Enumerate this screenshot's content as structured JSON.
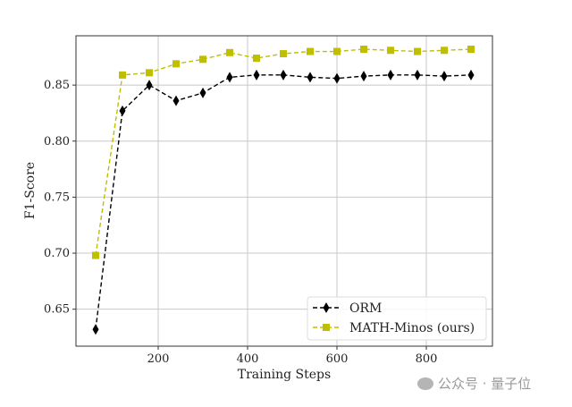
{
  "chart_data": {
    "type": "line",
    "title": "",
    "xlabel": "Training Steps",
    "ylabel": "F1-Score",
    "xlim": [
      16,
      948
    ],
    "ylim": [
      0.617,
      0.894
    ],
    "xticks": [
      200,
      400,
      600,
      800
    ],
    "xtick_labels": [
      "200",
      "400",
      "600",
      "800"
    ],
    "yticks": [
      0.65,
      0.7,
      0.75,
      0.8,
      0.85
    ],
    "ytick_labels": [
      "0.65",
      "0.70",
      "0.75",
      "0.80",
      "0.85"
    ],
    "grid": true,
    "legend_placement": "lower-right",
    "x": [
      60,
      120,
      180,
      240,
      300,
      360,
      420,
      480,
      540,
      600,
      660,
      720,
      780,
      840,
      900
    ],
    "series": [
      {
        "name": "ORM",
        "color": "#000000",
        "marker": "diamond",
        "linestyle": "dashed",
        "values": [
          0.632,
          0.827,
          0.85,
          0.836,
          0.843,
          0.857,
          0.859,
          0.859,
          0.857,
          0.856,
          0.858,
          0.859,
          0.859,
          0.858,
          0.859
        ]
      },
      {
        "name": "MATH-Minos (ours)",
        "color": "#bfbf00",
        "marker": "square",
        "linestyle": "dashed",
        "values": [
          0.698,
          0.859,
          0.861,
          0.869,
          0.873,
          0.879,
          0.874,
          0.878,
          0.88,
          0.88,
          0.882,
          0.881,
          0.88,
          0.881,
          0.882
        ]
      }
    ]
  },
  "watermark": "公众号 · 量子位"
}
